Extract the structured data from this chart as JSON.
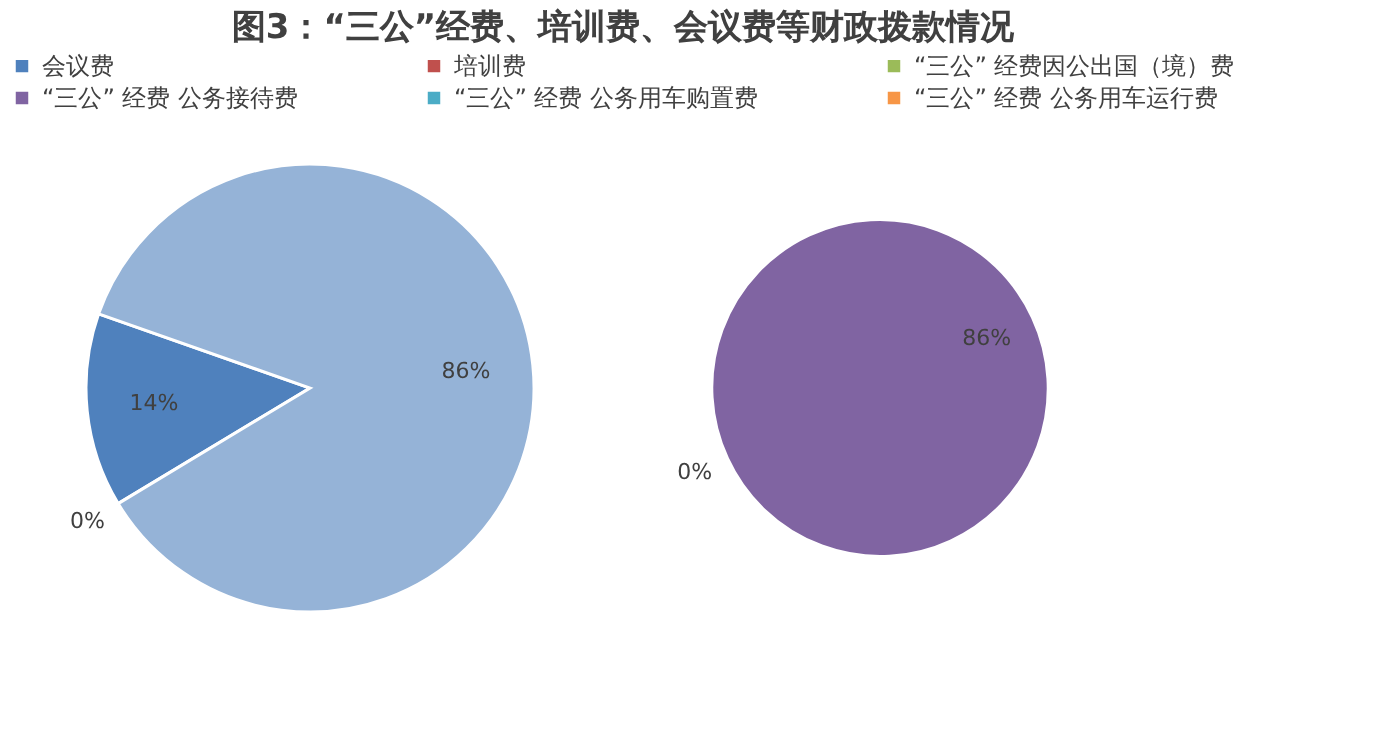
{
  "chart_data": [
    {
      "type": "pie",
      "title": "图3：“三公”经费、培训费、会议费等财政拨款情况",
      "legend": "top",
      "categories": [
        "会议费",
        "培训费",
        null
      ],
      "values": [
        14,
        0,
        86
      ],
      "colors": [
        "#4f81bd",
        "#c0504d",
        "#95b3d7"
      ],
      "value_labels": [
        "14%",
        "0%",
        "86%"
      ]
    },
    {
      "type": "pie",
      "legend": "top",
      "categories": [
        "“三公” 经费因公出国（境）费",
        "“三公” 经费 公务接待费",
        "“三公” 经费 公务用车购置费",
        "“三公” 经费 公务用车运行费"
      ],
      "values": [
        0,
        86,
        0,
        0
      ],
      "colors": [
        "#9bbb59",
        "#8064a2",
        "#4bacc6",
        "#f79646"
      ],
      "value_labels": [
        "0%",
        "86%",
        null,
        null
      ]
    }
  ]
}
